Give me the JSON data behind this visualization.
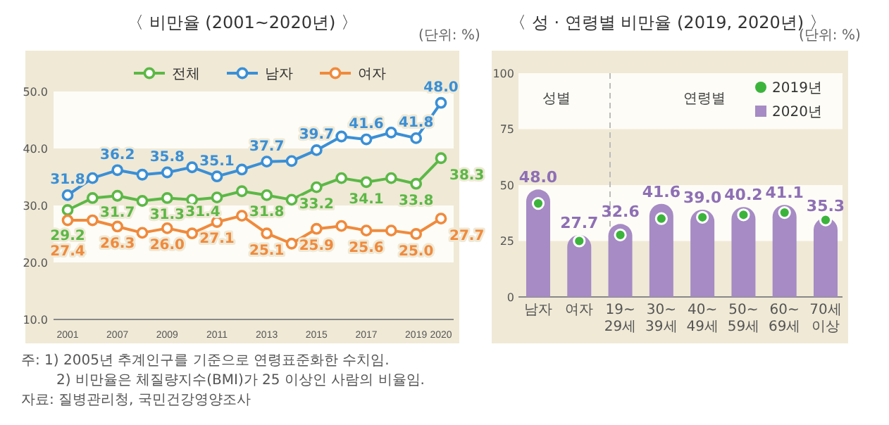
{
  "chart_data": [
    {
      "type": "line",
      "title": "〈 비만율 (2001~2020년) 〉",
      "annotations": [
        "(단위: %)",
        "주: 1) 2005년 추계인구를 기준으로 연령표준화한 수치임.",
        "2) 비만율은 체질량지수(BMI)가 25 이상인 사람의 비율임.",
        "자료: 질병관리청, 국민건강영양조사"
      ],
      "categories": [
        "2001",
        null,
        "2007",
        null,
        "2009",
        null,
        "2011",
        null,
        "2013",
        null,
        "2015",
        null,
        "2017",
        null,
        "2019",
        "2020"
      ],
      "series": [
        {
          "name": "전체",
          "color": "#5cb846",
          "values": [
            29.2,
            31.3,
            31.7,
            30.8,
            31.3,
            31.0,
            31.4,
            32.5,
            31.8,
            31.0,
            33.2,
            34.8,
            34.1,
            34.8,
            33.8,
            38.3
          ],
          "value_labels": [
            "29.2",
            null,
            "31.7",
            null,
            "31.3",
            null,
            "31.4",
            null,
            "31.8",
            null,
            "33.2",
            null,
            "34.1",
            null,
            "33.8",
            "38.3"
          ]
        },
        {
          "name": "남자",
          "color": "#3a8fd6",
          "values": [
            31.8,
            34.8,
            36.2,
            35.4,
            35.8,
            36.7,
            35.1,
            36.3,
            37.7,
            37.8,
            39.7,
            42.1,
            41.6,
            42.8,
            41.8,
            48.0
          ],
          "value_labels": [
            "31.8",
            null,
            "36.2",
            null,
            "35.8",
            null,
            "35.1",
            null,
            "37.7",
            null,
            "39.7",
            null,
            "41.6",
            null,
            "41.8",
            "48.0"
          ]
        },
        {
          "name": "여자",
          "color": "#f08a3c",
          "values": [
            27.4,
            27.4,
            26.3,
            25.2,
            26.0,
            25.1,
            27.1,
            28.2,
            25.1,
            23.3,
            25.9,
            26.4,
            25.6,
            25.6,
            25.0,
            27.7
          ],
          "value_labels": [
            "27.4",
            null,
            "26.3",
            null,
            "26.0",
            null,
            "27.1",
            null,
            "25.1",
            null,
            "25.9",
            null,
            "25.6",
            null,
            "25.0",
            "27.7"
          ]
        }
      ],
      "ylim": [
        10,
        50
      ],
      "yticks": [
        {
          "value": 10,
          "label": "10.0"
        },
        {
          "value": 20,
          "label": "20.0"
        },
        {
          "value": 30,
          "label": "30.0"
        },
        {
          "value": 40,
          "label": "40.0"
        },
        {
          "value": 50,
          "label": "50.0"
        }
      ],
      "bands": [
        {
          "axis": "y",
          "from": 20,
          "to": 30,
          "color": "#fdfcf6"
        },
        {
          "axis": "y",
          "from": 40,
          "to": 50,
          "color": "#fdfcf6"
        }
      ],
      "marker": "circle",
      "legend": "top",
      "grid": false
    },
    {
      "type": "bar",
      "title": "〈 성 · 연령별 비만율 (2019, 2020년) 〉",
      "annotations": [
        "(단위: %)",
        "성별",
        "연령별"
      ],
      "categories": [
        "남자",
        "여자",
        "19~\n29세",
        "30~\n39세",
        "40~\n49세",
        "50~\n59세",
        "60~\n69세",
        "70세\n이상"
      ],
      "series": [
        {
          "name": "2019년",
          "type": "scatter",
          "color": "#3cb43c",
          "values": [
            41.8,
            25.0,
            27.7,
            35.0,
            35.6,
            36.7,
            37.7,
            34.4
          ]
        },
        {
          "name": "2020년",
          "type": "bar",
          "color": "#a68bc4",
          "values": [
            48.0,
            27.7,
            32.6,
            41.6,
            39.0,
            40.2,
            41.1,
            35.3
          ],
          "value_labels": [
            "48.0",
            "27.7",
            "32.6",
            "41.6",
            "39.0",
            "40.2",
            "41.1",
            "35.3"
          ]
        }
      ],
      "ylim": [
        0,
        100
      ],
      "yticks": [
        0,
        25,
        50,
        75,
        100
      ],
      "bands": [
        {
          "axis": "y",
          "from": 25,
          "to": 50,
          "color": "#fdfcf6"
        },
        {
          "axis": "y",
          "from": 75,
          "to": 100,
          "color": "#fdfcf6"
        }
      ],
      "legend": "top right",
      "grid": false
    }
  ]
}
